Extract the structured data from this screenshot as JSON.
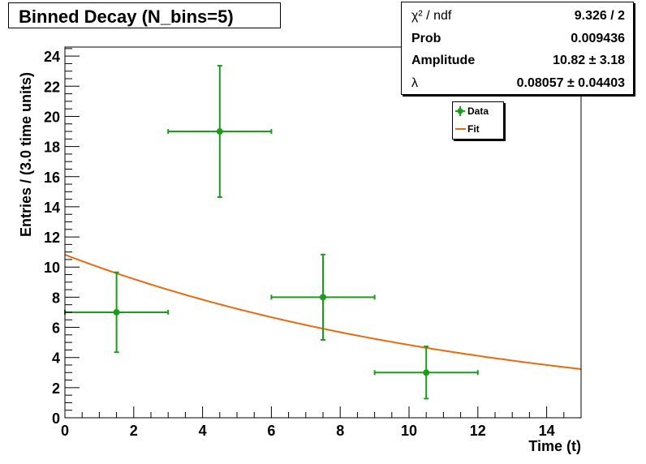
{
  "chart_data": {
    "type": "scatter",
    "title": "Binned Decay (N_bins=5)",
    "xlabel": "Time (t)",
    "ylabel": "Entries / (3.0 time units)",
    "xlim": [
      0,
      15
    ],
    "ylim": [
      0,
      24.6
    ],
    "xticks": [
      "0",
      "2",
      "4",
      "6",
      "8",
      "10",
      "12",
      "14"
    ],
    "yticks": [
      "0",
      "2",
      "4",
      "6",
      "8",
      "10",
      "12",
      "14",
      "16",
      "18",
      "20",
      "22",
      "24"
    ],
    "grid": false,
    "legend_position": "top-right",
    "series": [
      {
        "name": "Data",
        "color": "#1a9e1a",
        "points": [
          {
            "x": 1.5,
            "y": 7,
            "xerr": 1.5,
            "yerr_low": 2.65,
            "yerr_high": 2.65
          },
          {
            "x": 4.5,
            "y": 19,
            "xerr": 1.5,
            "yerr_low": 4.36,
            "yerr_high": 4.36
          },
          {
            "x": 7.5,
            "y": 8,
            "xerr": 1.5,
            "yerr_low": 2.83,
            "yerr_high": 2.83
          },
          {
            "x": 10.5,
            "y": 3,
            "xerr": 1.5,
            "yerr_low": 1.73,
            "yerr_high": 1.73
          }
        ]
      },
      {
        "name": "Fit",
        "color": "#e86a10",
        "function": "exponential",
        "amplitude": 10.82,
        "lambda": 0.08057
      }
    ],
    "stats": [
      {
        "label": "χ² / ndf",
        "value": "9.326 / 2"
      },
      {
        "label": "Prob",
        "value": "0.009436"
      },
      {
        "label": "Amplitude",
        "value": "10.82 ± 3.18"
      },
      {
        "label": "λ",
        "value": "0.08057 ± 0.04403"
      }
    ]
  }
}
